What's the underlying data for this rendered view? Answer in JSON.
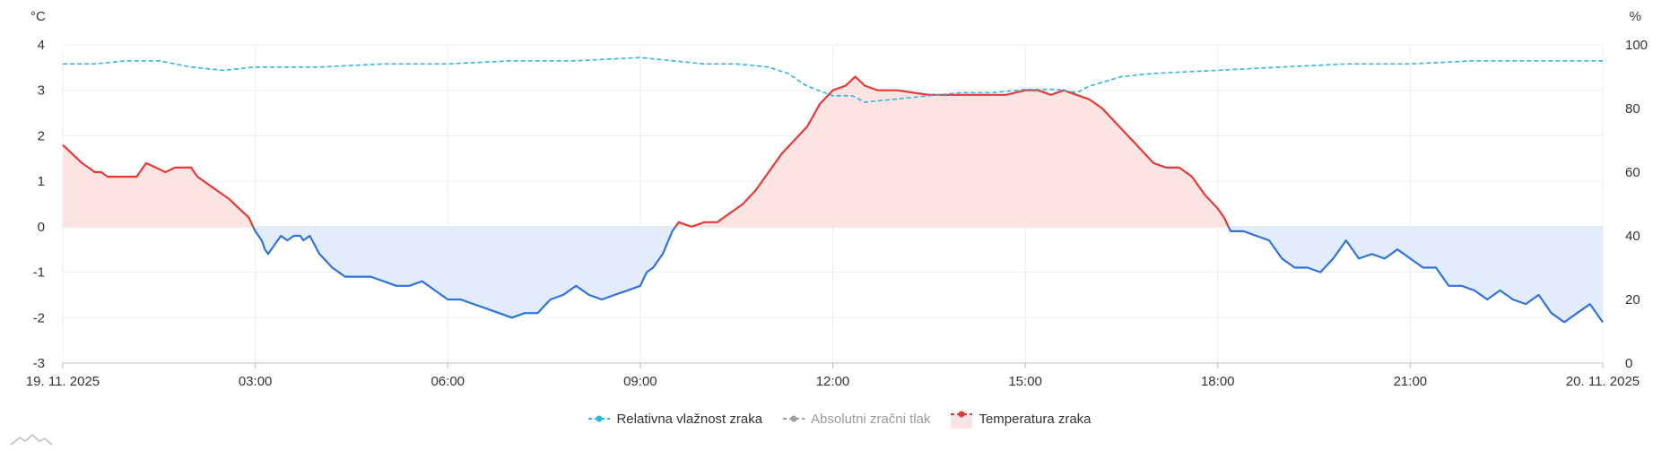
{
  "chart_data": {
    "type": "line",
    "title": "",
    "x": {
      "start_label": "19. 11. 2025",
      "end_label": "20. 11. 2025",
      "tick_labels": [
        "19. 11. 2025",
        "03:00",
        "06:00",
        "09:00",
        "12:00",
        "15:00",
        "18:00",
        "21:00",
        "20. 11. 2025"
      ],
      "range_hours": [
        0,
        24
      ]
    },
    "y_left": {
      "unit": "°C",
      "ticks": [
        -3,
        -2,
        -1,
        0,
        1,
        2,
        3,
        4
      ],
      "range": [
        -3,
        4
      ]
    },
    "y_right": {
      "unit": "%",
      "ticks": [
        0,
        20,
        40,
        60,
        80,
        100
      ],
      "range": [
        0,
        100
      ]
    },
    "grid": true,
    "legend_position": "bottom-center",
    "series": [
      {
        "name": "Relativna vlažnost zraka",
        "axis": "right",
        "style": "dashed",
        "color": "#2bb6e3",
        "enabled": true,
        "points": [
          [
            0,
            94
          ],
          [
            0.5,
            94
          ],
          [
            1,
            95
          ],
          [
            1.5,
            95
          ],
          [
            2,
            93
          ],
          [
            2.5,
            92
          ],
          [
            3,
            93
          ],
          [
            3.5,
            93
          ],
          [
            4,
            93
          ],
          [
            5,
            94
          ],
          [
            6,
            94
          ],
          [
            7,
            95
          ],
          [
            8,
            95
          ],
          [
            9,
            96
          ],
          [
            9.5,
            95
          ],
          [
            10,
            94
          ],
          [
            10.5,
            94
          ],
          [
            11,
            93
          ],
          [
            11.3,
            91
          ],
          [
            11.6,
            87
          ],
          [
            12,
            84
          ],
          [
            12.3,
            84
          ],
          [
            12.5,
            82
          ],
          [
            13,
            83
          ],
          [
            13.5,
            84
          ],
          [
            14,
            85
          ],
          [
            14.5,
            85
          ],
          [
            15,
            86
          ],
          [
            15.5,
            86
          ],
          [
            15.8,
            85
          ],
          [
            16,
            87
          ],
          [
            16.5,
            90
          ],
          [
            17,
            91
          ],
          [
            18,
            92
          ],
          [
            19,
            93
          ],
          [
            20,
            94
          ],
          [
            21,
            94
          ],
          [
            22,
            95
          ],
          [
            23,
            95
          ],
          [
            24,
            95
          ]
        ]
      },
      {
        "name": "Absolutni zračni tlak",
        "axis": "right",
        "style": "dashed",
        "color": "#9e9e9e",
        "enabled": false,
        "points": []
      },
      {
        "name": "Temperatura zraka",
        "axis": "left",
        "style": "solid-area",
        "color_positive": "#e53935",
        "color_negative": "#2f72d9",
        "fill_positive": "#fde4e4",
        "fill_negative": "#e3ecfb",
        "enabled": true,
        "points": [
          [
            0,
            1.8
          ],
          [
            0.15,
            1.6
          ],
          [
            0.3,
            1.4
          ],
          [
            0.5,
            1.2
          ],
          [
            0.6,
            1.2
          ],
          [
            0.7,
            1.1
          ],
          [
            1,
            1.1
          ],
          [
            1.15,
            1.1
          ],
          [
            1.3,
            1.4
          ],
          [
            1.45,
            1.3
          ],
          [
            1.6,
            1.2
          ],
          [
            1.75,
            1.3
          ],
          [
            2,
            1.3
          ],
          [
            2.1,
            1.1
          ],
          [
            2.3,
            0.9
          ],
          [
            2.6,
            0.6
          ],
          [
            2.75,
            0.4
          ],
          [
            2.9,
            0.2
          ],
          [
            3.0,
            -0.1
          ],
          [
            3.1,
            -0.3
          ],
          [
            3.15,
            -0.5
          ],
          [
            3.2,
            -0.6
          ],
          [
            3.3,
            -0.4
          ],
          [
            3.4,
            -0.2
          ],
          [
            3.5,
            -0.3
          ],
          [
            3.6,
            -0.2
          ],
          [
            3.7,
            -0.2
          ],
          [
            3.75,
            -0.3
          ],
          [
            3.85,
            -0.2
          ],
          [
            4,
            -0.6
          ],
          [
            4.2,
            -0.9
          ],
          [
            4.4,
            -1.1
          ],
          [
            4.6,
            -1.1
          ],
          [
            4.8,
            -1.1
          ],
          [
            5.0,
            -1.2
          ],
          [
            5.2,
            -1.3
          ],
          [
            5.4,
            -1.3
          ],
          [
            5.6,
            -1.2
          ],
          [
            5.8,
            -1.4
          ],
          [
            6.0,
            -1.6
          ],
          [
            6.2,
            -1.6
          ],
          [
            6.4,
            -1.7
          ],
          [
            6.6,
            -1.8
          ],
          [
            6.8,
            -1.9
          ],
          [
            7.0,
            -2.0
          ],
          [
            7.2,
            -1.9
          ],
          [
            7.4,
            -1.9
          ],
          [
            7.6,
            -1.6
          ],
          [
            7.8,
            -1.5
          ],
          [
            8.0,
            -1.3
          ],
          [
            8.2,
            -1.5
          ],
          [
            8.4,
            -1.6
          ],
          [
            8.6,
            -1.5
          ],
          [
            8.8,
            -1.4
          ],
          [
            9.0,
            -1.3
          ],
          [
            9.1,
            -1.0
          ],
          [
            9.2,
            -0.9
          ],
          [
            9.35,
            -0.6
          ],
          [
            9.5,
            -0.1
          ],
          [
            9.6,
            0.1
          ],
          [
            9.8,
            0.0
          ],
          [
            10,
            0.1
          ],
          [
            10.2,
            0.1
          ],
          [
            10.4,
            0.3
          ],
          [
            10.6,
            0.5
          ],
          [
            10.8,
            0.8
          ],
          [
            11.0,
            1.2
          ],
          [
            11.2,
            1.6
          ],
          [
            11.4,
            1.9
          ],
          [
            11.6,
            2.2
          ],
          [
            11.8,
            2.7
          ],
          [
            12.0,
            3.0
          ],
          [
            12.2,
            3.1
          ],
          [
            12.35,
            3.3
          ],
          [
            12.5,
            3.1
          ],
          [
            12.7,
            3.0
          ],
          [
            13.0,
            3.0
          ],
          [
            13.5,
            2.9
          ],
          [
            14.0,
            2.9
          ],
          [
            14.3,
            2.9
          ],
          [
            14.5,
            2.9
          ],
          [
            14.7,
            2.9
          ],
          [
            15.0,
            3.0
          ],
          [
            15.2,
            3.0
          ],
          [
            15.4,
            2.9
          ],
          [
            15.6,
            3.0
          ],
          [
            15.8,
            2.9
          ],
          [
            16.0,
            2.8
          ],
          [
            16.2,
            2.6
          ],
          [
            16.4,
            2.3
          ],
          [
            16.6,
            2.0
          ],
          [
            16.8,
            1.7
          ],
          [
            17.0,
            1.4
          ],
          [
            17.2,
            1.3
          ],
          [
            17.4,
            1.3
          ],
          [
            17.6,
            1.1
          ],
          [
            17.8,
            0.7
          ],
          [
            18.0,
            0.4
          ],
          [
            18.1,
            0.2
          ],
          [
            18.2,
            -0.1
          ],
          [
            18.4,
            -0.1
          ],
          [
            18.6,
            -0.2
          ],
          [
            18.8,
            -0.3
          ],
          [
            19.0,
            -0.7
          ],
          [
            19.2,
            -0.9
          ],
          [
            19.4,
            -0.9
          ],
          [
            19.6,
            -1.0
          ],
          [
            19.8,
            -0.7
          ],
          [
            20.0,
            -0.3
          ],
          [
            20.2,
            -0.7
          ],
          [
            20.4,
            -0.6
          ],
          [
            20.6,
            -0.7
          ],
          [
            20.8,
            -0.5
          ],
          [
            21.0,
            -0.7
          ],
          [
            21.2,
            -0.9
          ],
          [
            21.4,
            -0.9
          ],
          [
            21.6,
            -1.3
          ],
          [
            21.8,
            -1.3
          ],
          [
            22.0,
            -1.4
          ],
          [
            22.2,
            -1.6
          ],
          [
            22.4,
            -1.4
          ],
          [
            22.6,
            -1.6
          ],
          [
            22.8,
            -1.7
          ],
          [
            23.0,
            -1.5
          ],
          [
            23.2,
            -1.9
          ],
          [
            23.4,
            -2.1
          ],
          [
            23.6,
            -1.9
          ],
          [
            23.8,
            -1.7
          ],
          [
            24.0,
            -2.1
          ]
        ]
      }
    ]
  },
  "legend": {
    "items": [
      {
        "label": "Relativna vlažnost zraka",
        "enabled": true
      },
      {
        "label": "Absolutni zračni tlak",
        "enabled": false
      },
      {
        "label": "Temperatura zraka",
        "enabled": true
      }
    ]
  }
}
